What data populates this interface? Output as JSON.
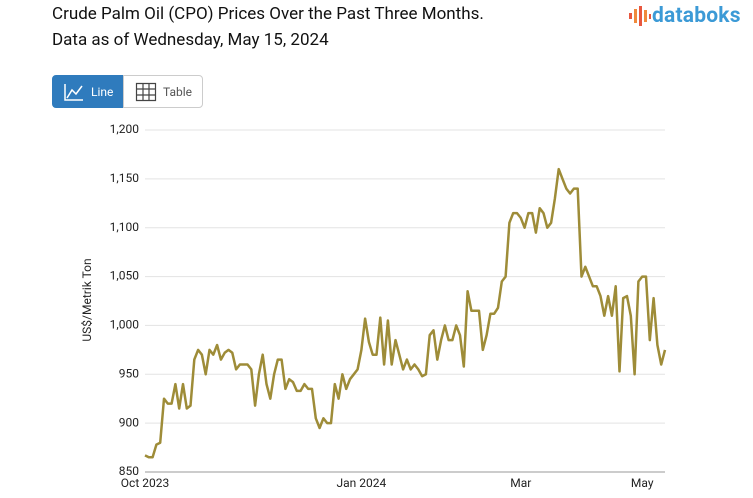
{
  "brand": "databoks",
  "view_toggle": [
    "Line",
    "Table"
  ],
  "chart_data": {
    "type": "line",
    "title": "Crude Palm Oil (CPO) Prices Over the Past Three Months.",
    "subtitle": "Data as of Wednesday, May 15, 2024",
    "y_label": "US$/Metrik Ton",
    "color": "#9e8c38",
    "grid": true,
    "ylim": [
      850,
      1200
    ],
    "yticks": [
      850,
      900,
      950,
      {
        "value": 1000,
        "label": "1,000"
      },
      {
        "value": 1050,
        "label": "1,050"
      },
      {
        "value": 1100,
        "label": "1,100"
      },
      {
        "value": 1150,
        "label": "1,150"
      },
      {
        "value": 1200,
        "label": "1,200"
      }
    ],
    "categories": [
      "Oct 2023",
      null,
      null,
      null,
      null,
      null,
      null,
      null,
      null,
      null,
      null,
      null,
      null,
      null,
      null,
      null,
      null,
      null,
      null,
      null,
      null,
      null,
      null,
      null,
      null,
      null,
      null,
      null,
      null,
      null,
      null,
      null,
      null,
      null,
      null,
      null,
      null,
      null,
      null,
      null,
      null,
      null,
      null,
      null,
      null,
      null,
      null,
      null,
      null,
      null,
      null,
      null,
      null,
      null,
      null,
      null,
      null,
      "Jan 2024",
      null,
      null,
      null,
      null,
      null,
      null,
      null,
      null,
      null,
      null,
      null,
      null,
      null,
      null,
      null,
      null,
      null,
      null,
      null,
      null,
      null,
      null,
      null,
      null,
      null,
      null,
      null,
      null,
      null,
      null,
      null,
      null,
      null,
      null,
      null,
      null,
      null,
      null,
      null,
      null,
      null,
      "Mar",
      null,
      null,
      null,
      null,
      null,
      null,
      null,
      null,
      null,
      null,
      null,
      null,
      null,
      null,
      null,
      null,
      null,
      null,
      null,
      null,
      null,
      null,
      null,
      null,
      null,
      null,
      null,
      null,
      null,
      null,
      null,
      "May",
      null,
      null,
      null,
      null,
      null,
      null
    ],
    "values": [
      867,
      865,
      865,
      878,
      880,
      925,
      920,
      920,
      940,
      915,
      940,
      915,
      918,
      965,
      975,
      970,
      950,
      975,
      970,
      980,
      965,
      972,
      975,
      972,
      955,
      960,
      960,
      960,
      955,
      918,
      950,
      970,
      940,
      925,
      950,
      965,
      965,
      935,
      945,
      942,
      933,
      933,
      940,
      935,
      935,
      905,
      895,
      905,
      900,
      900,
      940,
      925,
      950,
      935,
      945,
      950,
      955,
      975,
      1007,
      983,
      970,
      970,
      1008,
      960,
      1005,
      960,
      985,
      970,
      955,
      965,
      955,
      960,
      955,
      948,
      950,
      990,
      995,
      965,
      985,
      1000,
      985,
      985,
      1000,
      990,
      958,
      1035,
      1015,
      1015,
      1015,
      975,
      990,
      1012,
      1012,
      1018,
      1045,
      1050,
      1105,
      1115,
      1115,
      1110,
      1100,
      1115,
      1115,
      1095,
      1120,
      1115,
      1100,
      1105,
      1130,
      1160,
      1150,
      1140,
      1135,
      1140,
      1140,
      1050,
      1060,
      1050,
      1040,
      1040,
      1030,
      1010,
      1030,
      1010,
      1040,
      953,
      1028,
      1030,
      1010,
      950,
      1045,
      1050,
      1050,
      985,
      1028,
      980,
      960,
      975
    ]
  }
}
